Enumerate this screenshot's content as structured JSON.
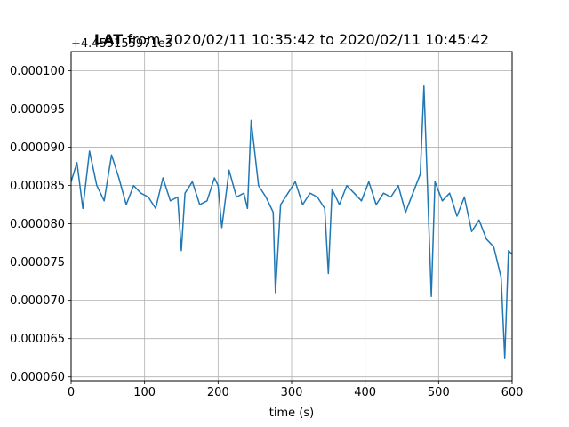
{
  "chart_data": {
    "type": "line",
    "title_bold": "LAT",
    "title_rest": " from 2020/02/11 10:35:42 to 2020/02/11 10:45:42",
    "offset_label": "+4.455155971e3",
    "xlabel": "time (s)",
    "ylabel": "",
    "xlim": [
      0,
      600
    ],
    "ylim": [
      5.95e-05,
      0.0001025
    ],
    "x_ticks": [
      0,
      100,
      200,
      300,
      400,
      500,
      600
    ],
    "x_tick_labels": [
      "0",
      "100",
      "200",
      "300",
      "400",
      "500",
      "600"
    ],
    "y_ticks": [
      6e-05,
      6.5e-05,
      7e-05,
      7.5e-05,
      8e-05,
      8.5e-05,
      9e-05,
      9.5e-05,
      0.0001
    ],
    "y_tick_labels": [
      "0.000060",
      "0.000065",
      "0.000070",
      "0.000075",
      "0.000080",
      "0.000085",
      "0.000090",
      "0.000095",
      "0.000100"
    ],
    "grid": true,
    "line_color": "#1f77b4",
    "series": [
      {
        "x": [
          0,
          8,
          16,
          25,
          35,
          45,
          55,
          65,
          75,
          85,
          95,
          105,
          115,
          125,
          135,
          145,
          150,
          155,
          165,
          175,
          185,
          195,
          200,
          205,
          215,
          225,
          235,
          240,
          245,
          255,
          265,
          275,
          278,
          285,
          295,
          305,
          315,
          325,
          335,
          345,
          350,
          355,
          365,
          375,
          385,
          395,
          405,
          415,
          425,
          435,
          445,
          455,
          465,
          475,
          480,
          485,
          490,
          495,
          505,
          515,
          525,
          535,
          545,
          555,
          565,
          575,
          585,
          590,
          595,
          600
        ],
        "y": [
          8.55e-05,
          8.8e-05,
          8.2e-05,
          8.95e-05,
          8.5e-05,
          8.3e-05,
          8.9e-05,
          8.6e-05,
          8.25e-05,
          8.5e-05,
          8.4e-05,
          8.35e-05,
          8.2e-05,
          8.6e-05,
          8.3e-05,
          8.35e-05,
          7.65e-05,
          8.4e-05,
          8.55e-05,
          8.25e-05,
          8.3e-05,
          8.6e-05,
          8.5e-05,
          7.95e-05,
          8.7e-05,
          8.35e-05,
          8.4e-05,
          8.2e-05,
          9.35e-05,
          8.5e-05,
          8.35e-05,
          8.15e-05,
          7.1e-05,
          8.25e-05,
          8.4e-05,
          8.55e-05,
          8.25e-05,
          8.4e-05,
          8.35e-05,
          8.2e-05,
          7.35e-05,
          8.45e-05,
          8.25e-05,
          8.5e-05,
          8.4e-05,
          8.3e-05,
          8.55e-05,
          8.25e-05,
          8.4e-05,
          8.35e-05,
          8.5e-05,
          8.15e-05,
          8.4e-05,
          8.65e-05,
          9.8e-05,
          8.45e-05,
          7.05e-05,
          8.55e-05,
          8.3e-05,
          8.4e-05,
          8.1e-05,
          8.35e-05,
          7.9e-05,
          8.05e-05,
          7.8e-05,
          7.7e-05,
          7.3e-05,
          6.25e-05,
          7.65e-05,
          7.6e-05
        ]
      }
    ]
  }
}
